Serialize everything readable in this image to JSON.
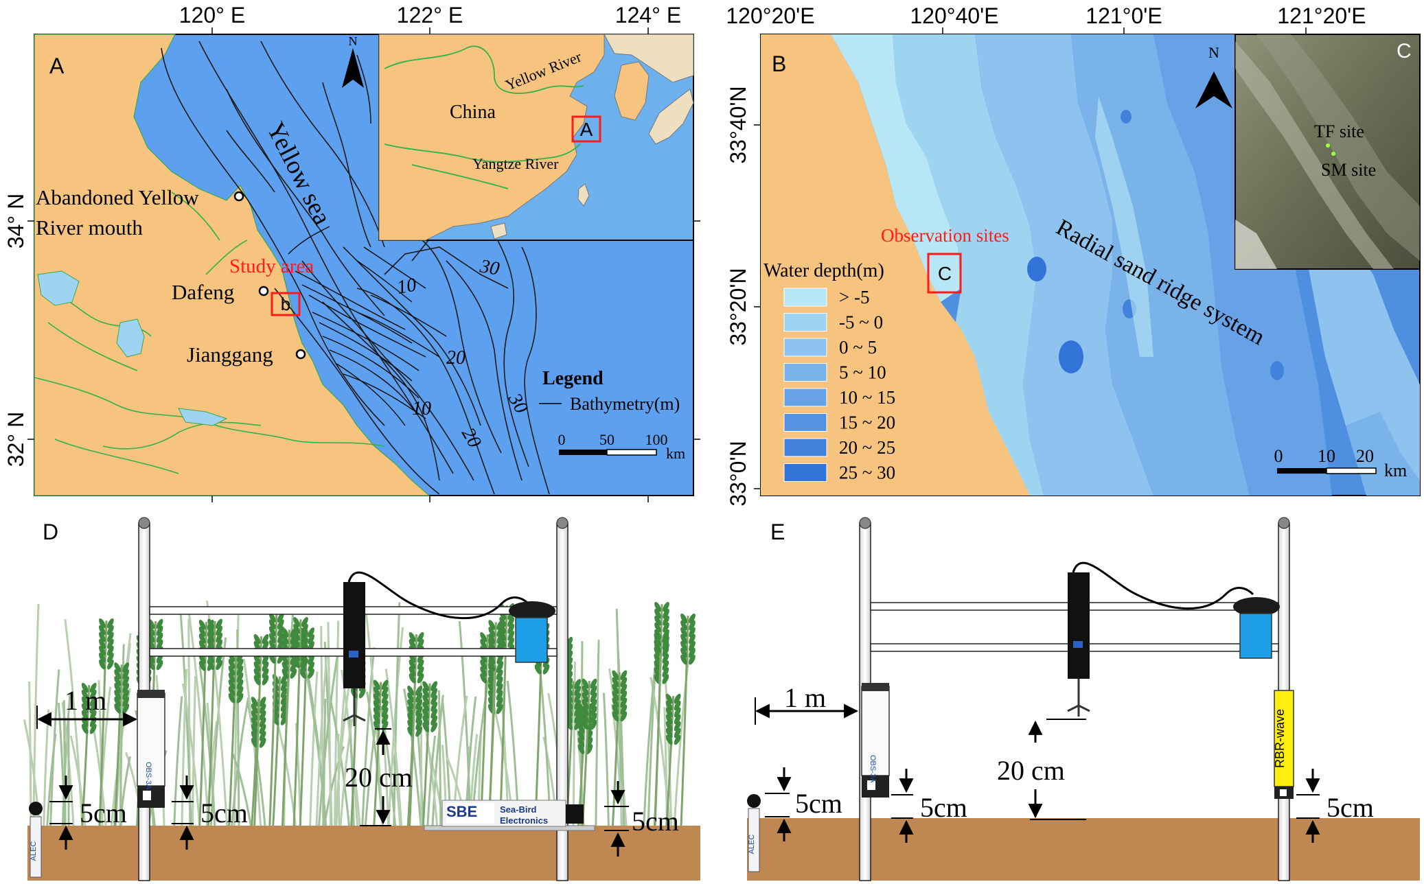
{
  "colors": {
    "land": "#f6c47e",
    "sea": "#5ea0f0",
    "inset_sea": "#6cb0ee",
    "river": "#30b24a",
    "red": "#ff1b1b",
    "depth_scale": [
      "#b7e6f4",
      "#9fd4f1",
      "#8dc3ee",
      "#7ab3ea",
      "#67a2e6",
      "#5592e1",
      "#4382dc",
      "#3273d7"
    ]
  },
  "panel_a": {
    "label": "A",
    "lon_ticks": [
      "120° E",
      "122° E",
      "124° E"
    ],
    "lat_ticks": [
      "34° N",
      "32° N"
    ],
    "sea_name": "Yellow sea",
    "places": [
      "Abandoned Yellow",
      "River mouth",
      "Dafeng",
      "Jianggang"
    ],
    "study_area": "Study area",
    "study_box_label": "b",
    "bathy_labels": [
      "10",
      "20",
      "30",
      "10",
      "20",
      "30"
    ],
    "legend_title": "Legend",
    "legend_item": "Bathymetry(m)",
    "scale_ticks": [
      "0",
      "50",
      "100"
    ],
    "scale_unit": "km",
    "north": "N",
    "inset": {
      "country": "China",
      "river1": "Yellow River",
      "river2": "Yangtze River",
      "box_label": "A"
    }
  },
  "panel_b": {
    "label": "B",
    "lon_ticks": [
      "120°20'E",
      "120°40'E",
      "121°0'E",
      "121°20'E"
    ],
    "lat_ticks": [
      "33°40'N",
      "33°20'N",
      "33°0'N"
    ],
    "obs_label": "Observation sites",
    "obs_box_label": "C",
    "ridge_label": "Radial sand ridge system",
    "legend_title": "Water depth(m)",
    "legend_items": [
      "> -5",
      "-5 ~ 0",
      "0 ~ 5",
      "5 ~ 10",
      "10 ~ 15",
      "15 ~ 20",
      "20 ~ 25",
      "25 ~ 30"
    ],
    "scale_ticks": [
      "0",
      "10",
      "20"
    ],
    "scale_unit": "km",
    "north": "N",
    "inset": {
      "label": "C",
      "site1": "TF site",
      "site2": "SM site"
    }
  },
  "panel_d": {
    "label": "D",
    "dist": "1 m",
    "height_20": "20 cm",
    "h5_left": "5cm",
    "h5_mid": "5cm",
    "h5_right": "5cm",
    "obs_text": "OBS-3A",
    "alec_text": "ALEC",
    "sbe_brand": "SBE",
    "sbe_line1": "Sea-Bird",
    "sbe_line2": "Electronics"
  },
  "panel_e": {
    "label": "E",
    "dist": "1 m",
    "height_20": "20 cm",
    "h5_left": "5cm",
    "h5_mid": "5cm",
    "h5_right": "5cm",
    "obs_text": "OBS-3A",
    "alec_text": "ALEC",
    "rbr_text": "RBR-wave"
  }
}
